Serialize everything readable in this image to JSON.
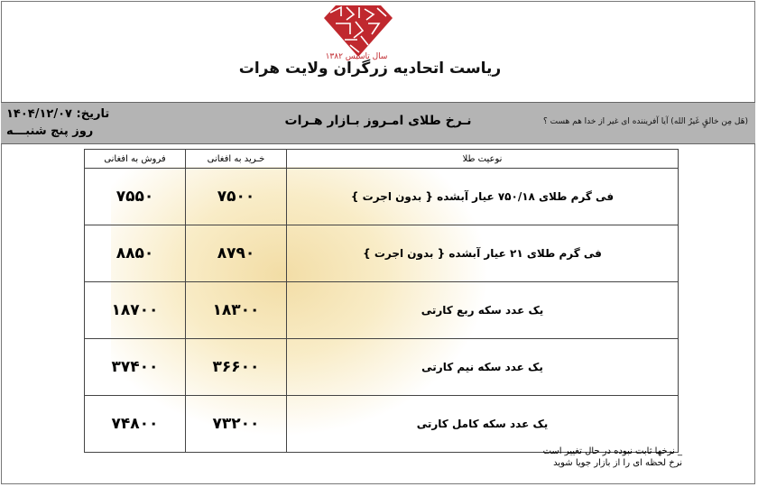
{
  "header": {
    "founded": "سال تاسیس ۱۳۸۲",
    "organization": "ریاست اتحادیه زرگران ولایت هرات",
    "logo_color": "#c0282e"
  },
  "band": {
    "verse": "(هَل مِن خالقٍ غَیرُ الله) آیا آفریننده ای غیر از خدا هم هست ؟",
    "title": "نـرخ طلای امـروز بـازار هـرات",
    "date": "تاریخ: ۱۴۰۴/۱۲/۰۷",
    "day": "روز پنج شنبـــه"
  },
  "table": {
    "headers": {
      "type": "نوعیت طلا",
      "buy": "خـرید به افغانی",
      "sell": "فروش به افغانی"
    },
    "rows": [
      {
        "type": "فی گرم طلای ۷۵۰/۱۸ عیار آبشده { بدون اجرت }",
        "buy": "۷۵۰۰",
        "sell": "۷۵۵۰"
      },
      {
        "type": "فی گرم طلای ۲۱ عیار آبشده { بدون اجرت }",
        "buy": "۸۷۹۰",
        "sell": "۸۸۵۰"
      },
      {
        "type": "یک عدد سکه ربع کارتی",
        "buy": "۱۸۳۰۰",
        "sell": "۱۸۷۰۰"
      },
      {
        "type": "یک عدد سکه نیم کارتی",
        "buy": "۳۶۶۰۰",
        "sell": "۳۷۴۰۰"
      },
      {
        "type": "یک عدد سکه کامل کارتی",
        "buy": "۷۳۲۰۰",
        "sell": "۷۴۸۰۰"
      }
    ]
  },
  "notes": {
    "line1": "_ نرخها ثابت نبوده در حال تغییر است",
    "line2": "نرخ لحظه ای را از بازار جویا شوید"
  }
}
